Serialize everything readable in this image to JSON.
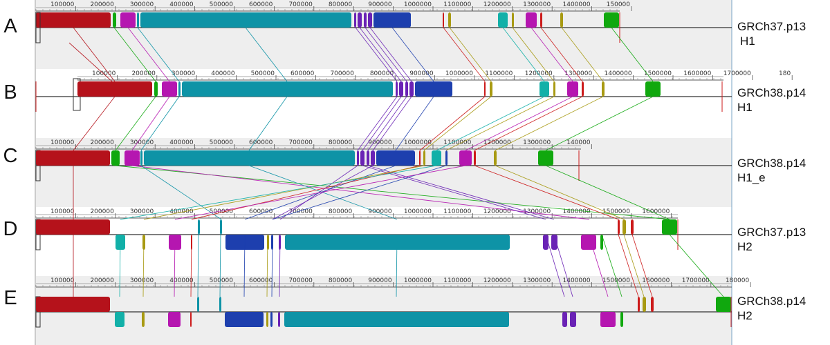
{
  "tracks": [
    {
      "letter": "A",
      "name": "GRCh37.p13",
      "haplotype": "H1",
      "ticks": [
        "100000",
        "200000",
        "300000",
        "400000",
        "500000",
        "600000",
        "700000",
        "800000",
        "900000",
        "1000000",
        "1100000",
        "1200000",
        "1300000",
        "1400000",
        "150000"
      ]
    },
    {
      "letter": "B",
      "name": "GRCh38.p14",
      "haplotype": "H1",
      "ticks": [
        "100000",
        "200000",
        "300000",
        "400000",
        "500000",
        "600000",
        "700000",
        "800000",
        "900000",
        "1000000",
        "1100000",
        "1200000",
        "1300000",
        "1400000",
        "1500000",
        "1600000",
        "1700000",
        "180"
      ]
    },
    {
      "letter": "C",
      "name": "GRCh38.p14",
      "haplotype": "H1_e",
      "ticks": [
        "100000",
        "200000",
        "300000",
        "400000",
        "500000",
        "600000",
        "700000",
        "800000",
        "900000",
        "1000000",
        "1100000",
        "1200000",
        "1300000",
        "140000"
      ]
    },
    {
      "letter": "D",
      "name": "GRCh37.p13",
      "haplotype": "H2",
      "ticks": [
        "100000",
        "200000",
        "300000",
        "400000",
        "500000",
        "600000",
        "700000",
        "800000",
        "900000",
        "1000000",
        "1100000",
        "1200000",
        "1300000",
        "1400000",
        "1500000",
        "1600000"
      ]
    },
    {
      "letter": "E",
      "name": "GRCh38.p14",
      "haplotype": "H2",
      "ticks": [
        "100000",
        "200000",
        "300000",
        "400000",
        "500000",
        "600000",
        "700000",
        "800000",
        "900000",
        "1000000",
        "1100000",
        "1200000",
        "1300000",
        "1400000",
        "1500000",
        "1600000",
        "1700000",
        "180000"
      ]
    }
  ],
  "colors": {
    "red": "#b5121b",
    "green": "#10a80e",
    "magenta": "#b516b0",
    "teal": "#0e93a6",
    "purple": "#6a22b5",
    "blue": "#1d3fae",
    "olive": "#a89a12",
    "cyan": "#12b0a8",
    "crimson": "#cc1a1a",
    "panel": "#eeeeee",
    "axis": "#333333"
  }
}
